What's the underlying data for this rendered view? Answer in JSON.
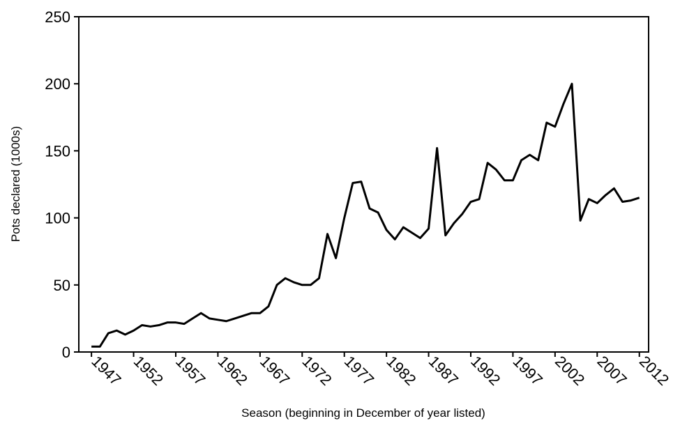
{
  "chart_data": {
    "type": "line",
    "x_label": "Season (beginning  in December of year listed)",
    "y_label": "Pots declared  (1000s)",
    "x": [
      1947,
      1948,
      1949,
      1950,
      1951,
      1952,
      1953,
      1954,
      1955,
      1956,
      1957,
      1958,
      1959,
      1960,
      1961,
      1962,
      1963,
      1964,
      1965,
      1966,
      1967,
      1968,
      1969,
      1970,
      1971,
      1972,
      1973,
      1974,
      1975,
      1976,
      1977,
      1978,
      1979,
      1980,
      1981,
      1982,
      1983,
      1984,
      1985,
      1986,
      1987,
      1988,
      1989,
      1990,
      1991,
      1992,
      1993,
      1994,
      1995,
      1996,
      1997,
      1998,
      1999,
      2000,
      2001,
      2002,
      2003,
      2004,
      2005,
      2006,
      2007,
      2008,
      2009,
      2010,
      2011,
      2012
    ],
    "values": [
      4,
      4,
      14,
      16,
      13,
      16,
      20,
      19,
      20,
      22,
      22,
      21,
      25,
      29,
      25,
      24,
      23,
      25,
      27,
      29,
      29,
      34,
      50,
      55,
      52,
      50,
      50,
      55,
      88,
      70,
      100,
      126,
      127,
      107,
      104,
      91,
      84,
      93,
      89,
      85,
      92,
      152,
      87,
      96,
      103,
      112,
      114,
      141,
      136,
      128,
      128,
      143,
      147,
      143,
      171,
      168,
      185,
      200,
      98,
      114,
      111,
      117,
      122,
      112,
      113,
      115
    ],
    "color": "#000000",
    "xlim": [
      1945.5,
      2013.1
    ],
    "xticks": [
      1947,
      1952,
      1957,
      1962,
      1967,
      1972,
      1977,
      1982,
      1987,
      1992,
      1997,
      2002,
      2007,
      2012
    ],
    "ylim": [
      0,
      250
    ],
    "yticks": [
      0,
      50,
      100,
      150,
      200,
      250
    ]
  }
}
